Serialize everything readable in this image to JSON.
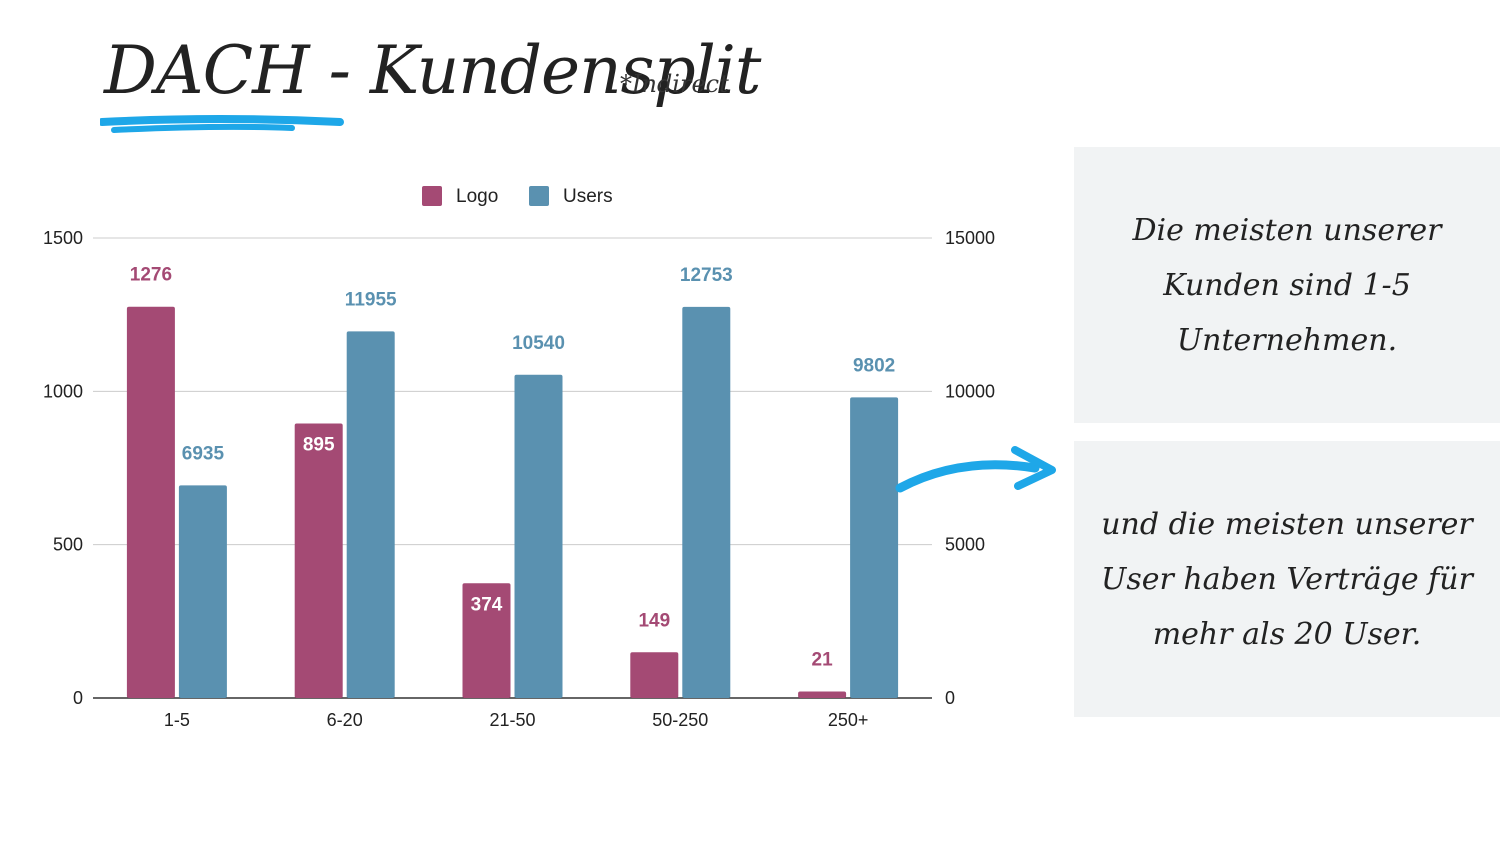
{
  "title": "DACH - Kundensplit",
  "title_note": "*Indirect",
  "accent_color": "#1ea7e8",
  "notes": [
    "Die meisten unserer Kunden sind 1-5 Unternehmen.",
    "und die meisten unserer User haben Verträge für mehr als 20 User."
  ],
  "chart_data": {
    "type": "bar",
    "categories": [
      "1-5",
      "6-20",
      "21-50",
      "50-250",
      "250+"
    ],
    "series": [
      {
        "name": "Logo",
        "axis": "left",
        "color": "#a44a74",
        "values": [
          1276,
          895,
          374,
          149,
          21
        ]
      },
      {
        "name": "Users",
        "axis": "right",
        "color": "#5a91b0",
        "values": [
          6935,
          11955,
          10540,
          12753,
          9802
        ]
      }
    ],
    "y_left": {
      "min": 0,
      "max": 1500,
      "ticks": [
        0,
        500,
        1000,
        1500
      ]
    },
    "y_right": {
      "min": 0,
      "max": 15000,
      "ticks": [
        0,
        5000,
        10000,
        15000
      ]
    },
    "grid": true,
    "legend_position": "top-center",
    "data_labels": true
  }
}
